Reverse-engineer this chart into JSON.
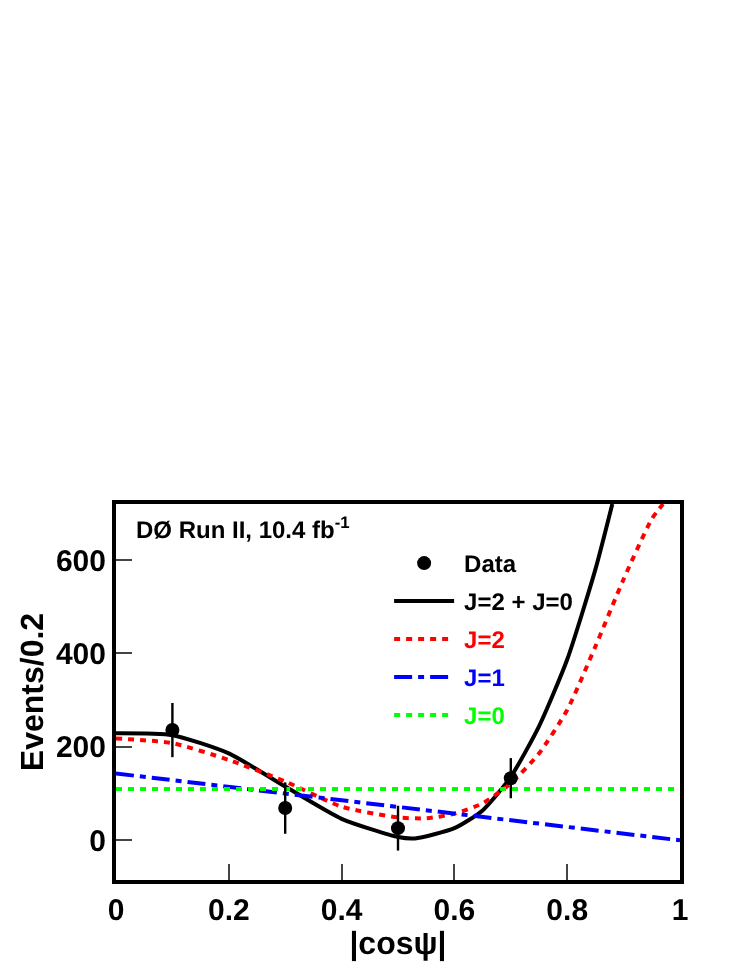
{
  "chart_data": {
    "type": "line",
    "xlabel": "|cosψ|",
    "ylabel": "Events/0.2",
    "annotations": [
      "DØ Run II, 10.4 fb$^{-1}$"
    ],
    "xlim": [
      0,
      1
    ],
    "xticks": [
      0,
      0.2,
      0.4,
      0.6,
      0.8,
      1
    ],
    "ylim": [
      -85,
      720
    ],
    "yticks": [
      0,
      200,
      400,
      600
    ],
    "legend": "top right",
    "series": [
      {
        "name": "Data",
        "type": "scatter",
        "color": "#000000",
        "marker": "circle",
        "x": [
          0.1,
          0.3,
          0.5,
          0.7
        ],
        "values": [
          236,
          69,
          26,
          133
        ],
        "errors": [
          58,
          55,
          48,
          43
        ]
      },
      {
        "name": "J=2 + J=0",
        "color": "#000000",
        "line_style": "solid",
        "x": [
          0,
          0.1,
          0.2,
          0.3,
          0.4,
          0.5,
          0.53,
          0.6,
          0.65,
          0.7,
          0.75,
          0.8,
          0.85,
          0.88
        ],
        "values": [
          229,
          225,
          186,
          115,
          46,
          7,
          4,
          26,
          64,
          136,
          244,
          387,
          580,
          720
        ]
      },
      {
        "name": "J=2",
        "color": "#ff0000",
        "line_style": "dotted",
        "x": [
          0,
          0.1,
          0.2,
          0.3,
          0.4,
          0.5,
          0.55,
          0.6,
          0.65,
          0.7,
          0.75,
          0.8,
          0.85,
          0.9,
          0.95,
          0.97
        ],
        "values": [
          218,
          208,
          172,
          126,
          72,
          49,
          47,
          57,
          79,
          122,
          186,
          279,
          415,
          559,
          688,
          720
        ]
      },
      {
        "name": "J=1",
        "color": "#0000ff",
        "line_style": "dashdot",
        "x": [
          0,
          1
        ],
        "values": [
          143,
          0
        ]
      },
      {
        "name": "J=0",
        "color": "#00ff00",
        "line_style": "dotted",
        "x": [
          0,
          1
        ],
        "values": [
          110,
          110
        ]
      }
    ]
  }
}
